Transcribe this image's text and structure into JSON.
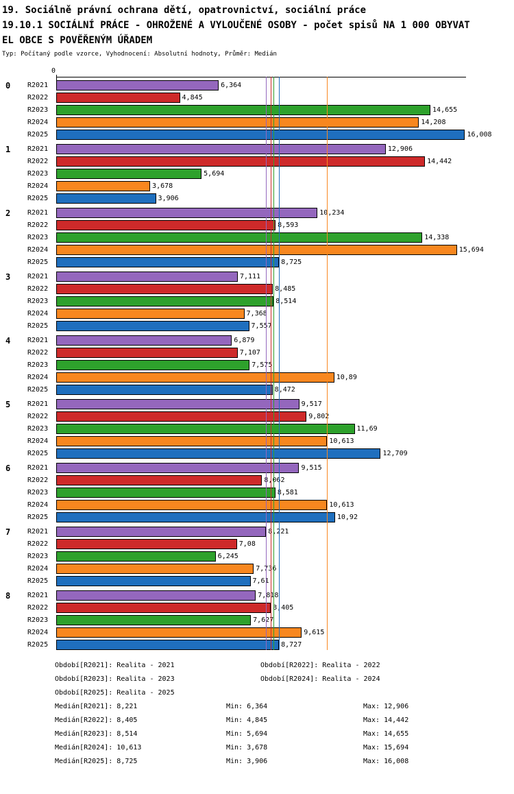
{
  "header": {
    "title_line1": "19. Sociálně právní ochrana dětí, opatrovnictví, sociální práce",
    "title_line2": "19.10.1 SOCIÁLNÍ PRÁCE - OHROŽENÉ A VYLOUČENÉ OSOBY - počet spisů NA 1 000 OBYVAT",
    "title_line3": "EL OBCE S POVĚŘENÝM ÚŘADEM",
    "subtitle": "Typ: Počítaný podle vzorce, Vyhodnocení: Absolutní hodnoty, Průměr: Medián"
  },
  "chart_data": {
    "type": "bar",
    "orientation": "horizontal",
    "title": "19.10.1 SOCIÁLNÍ PRÁCE - OHROŽENÉ A VYLOUČENÉ OSOBY - počet spisů NA 1 000 OBYVATEL OBCE S POVĚŘENÝM ÚŘADEM",
    "xlabel": "",
    "ylabel": "",
    "xlim": [
      0,
      16.05
    ],
    "axis_origin_label": "0",
    "grid": false,
    "legend_position": "bottom",
    "categories": [
      "0",
      "1",
      "2",
      "3",
      "4",
      "5",
      "6",
      "7",
      "8"
    ],
    "series": [
      {
        "name": "R2021",
        "color": "#9467BD"
      },
      {
        "name": "R2022",
        "color": "#CE2A2A"
      },
      {
        "name": "R2023",
        "color": "#2EA12C"
      },
      {
        "name": "R2024",
        "color": "#F8871F"
      },
      {
        "name": "R2025",
        "color": "#1F6FBE"
      }
    ],
    "groups": [
      {
        "category": "0",
        "values": [
          6.364,
          4.845,
          14.655,
          14.208,
          16.008
        ],
        "labels": [
          "6,364",
          "4,845",
          "14,655",
          "14,208",
          "16,008"
        ]
      },
      {
        "category": "1",
        "values": [
          12.906,
          14.442,
          5.694,
          3.678,
          3.906
        ],
        "labels": [
          "12,906",
          "14,442",
          "5,694",
          "3,678",
          "3,906"
        ]
      },
      {
        "category": "2",
        "values": [
          10.234,
          8.593,
          14.338,
          15.694,
          8.725
        ],
        "labels": [
          "10,234",
          "8,593",
          "14,338",
          "15,694",
          "8,725"
        ]
      },
      {
        "category": "3",
        "values": [
          7.111,
          8.485,
          8.514,
          7.368,
          7.557
        ],
        "labels": [
          "7,111",
          "8,485",
          "8,514",
          "7,368",
          "7,557"
        ]
      },
      {
        "category": "4",
        "values": [
          6.879,
          7.107,
          7.575,
          10.89,
          8.472
        ],
        "labels": [
          "6,879",
          "7,107",
          "7,575",
          "10,89",
          "8,472"
        ]
      },
      {
        "category": "5",
        "values": [
          9.517,
          9.802,
          11.69,
          10.613,
          12.709
        ],
        "labels": [
          "9,517",
          "9,802",
          "11,69",
          "10,613",
          "12,709"
        ]
      },
      {
        "category": "6",
        "values": [
          9.515,
          8.062,
          8.581,
          10.613,
          10.92
        ],
        "labels": [
          "9,515",
          "8,062",
          "8,581",
          "10,613",
          "10,92"
        ]
      },
      {
        "category": "7",
        "values": [
          8.221,
          7.08,
          6.245,
          7.736,
          7.61
        ],
        "labels": [
          "8,221",
          "7,08",
          "6,245",
          "7,736",
          "7,61"
        ]
      },
      {
        "category": "8",
        "values": [
          7.818,
          8.405,
          7.627,
          9.615,
          8.727
        ],
        "labels": [
          "7,818",
          "8,405",
          "7,627",
          "9,615",
          "8,727"
        ]
      }
    ],
    "median_lines": [
      {
        "series": "R2021",
        "value": 8.221,
        "color": "#9467BD"
      },
      {
        "series": "R2022",
        "value": 8.405,
        "color": "#CE2A2A"
      },
      {
        "series": "R2023",
        "value": 8.514,
        "color": "#2EA12C"
      },
      {
        "series": "R2024",
        "value": 10.613,
        "color": "#F8871F"
      },
      {
        "series": "R2025",
        "value": 8.725,
        "color": "#1F6FBE"
      }
    ]
  },
  "legend_rows": [
    [
      "Období[R2021]: Realita - 2021",
      "Období[R2022]: Realita - 2022"
    ],
    [
      "Období[R2023]: Realita - 2023",
      "Období[R2024]: Realita - 2024"
    ],
    [
      "Období[R2025]: Realita - 2025",
      ""
    ]
  ],
  "stats_rows": [
    [
      "Medián[R2021]: 8,221",
      "Min: 6,364",
      "Max: 12,906"
    ],
    [
      "Medián[R2022]: 8,405",
      "Min: 4,845",
      "Max: 14,442"
    ],
    [
      "Medián[R2023]: 8,514",
      "Min: 5,694",
      "Max: 14,655"
    ],
    [
      "Medián[R2024]: 10,613",
      "Min: 3,678",
      "Max: 15,694"
    ],
    [
      "Medián[R2025]: 8,725",
      "Min: 3,906",
      "Max: 16,008"
    ]
  ]
}
